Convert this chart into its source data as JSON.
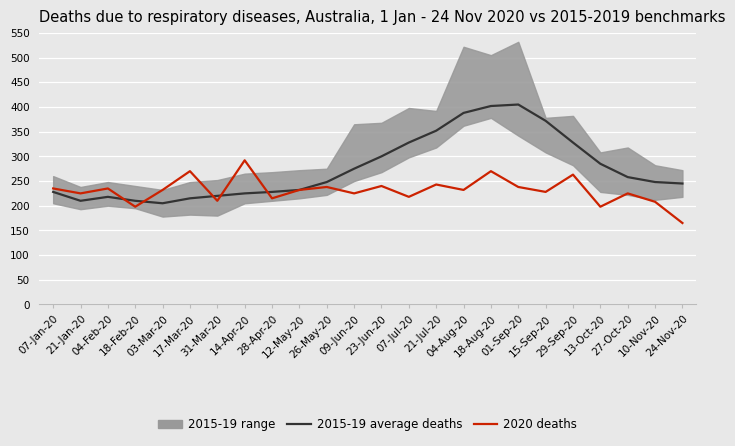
{
  "title": "Deaths due to respiratory diseases, Australia, 1 Jan - 24 Nov 2020 vs 2015-2019 benchmarks",
  "x_labels": [
    "07-Jan-20",
    "21-Jan-20",
    "04-Feb-20",
    "18-Feb-20",
    "03-Mar-20",
    "17-Mar-20",
    "31-Mar-20",
    "14-Apr-20",
    "28-Apr-20",
    "12-May-20",
    "26-May-20",
    "09-Jun-20",
    "23-Jun-20",
    "07-Jul-20",
    "21-Jul-20",
    "04-Aug-20",
    "18-Aug-20",
    "01-Sep-20",
    "15-Sep-20",
    "29-Sep-20",
    "13-Oct-20",
    "27-Oct-20",
    "10-Nov-20",
    "24-Nov-20"
  ],
  "avg": [
    228,
    210,
    218,
    210,
    205,
    215,
    220,
    225,
    228,
    232,
    248,
    275,
    300,
    328,
    352,
    388,
    402,
    405,
    372,
    328,
    285,
    258,
    248,
    245
  ],
  "low": [
    205,
    193,
    200,
    195,
    178,
    182,
    180,
    205,
    210,
    215,
    222,
    250,
    268,
    298,
    318,
    362,
    378,
    342,
    308,
    282,
    228,
    222,
    212,
    218
  ],
  "high": [
    260,
    238,
    248,
    240,
    232,
    248,
    252,
    265,
    268,
    272,
    275,
    365,
    368,
    398,
    392,
    522,
    505,
    532,
    378,
    382,
    308,
    318,
    282,
    272
  ],
  "deaths_2020": [
    235,
    225,
    235,
    198,
    232,
    270,
    210,
    292,
    215,
    232,
    238,
    225,
    240,
    218,
    243,
    232,
    270,
    238,
    228,
    263,
    198,
    225,
    208,
    165
  ],
  "ylim": [
    0,
    550
  ],
  "yticks": [
    0,
    50,
    100,
    150,
    200,
    250,
    300,
    350,
    400,
    450,
    500,
    550
  ],
  "fill_color": "#999999",
  "avg_color": "#333333",
  "deaths_color": "#cc2200",
  "background_color": "#e8e8e8",
  "title_fontsize": 10.5,
  "tick_fontsize": 7.5,
  "legend_fontsize": 8.5
}
